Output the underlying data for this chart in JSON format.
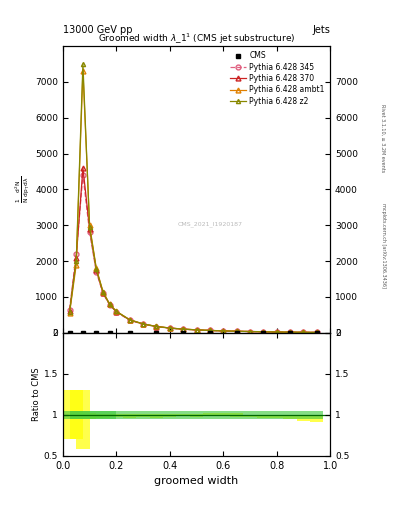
{
  "top_left_label": "13000 GeV pp",
  "top_right_label": "Jets",
  "right_label_top": "Rivet 3.1.10, ≥ 3.2M events",
  "right_label_bot": "mcplots.cern.ch [arXiv:1306.3436]",
  "watermark": "CMS_2021_I1920187",
  "xlabel": "groomed width",
  "ylabel_ratio": "Ratio to CMS",
  "xlim": [
    0.0,
    1.0
  ],
  "ylim_main": [
    0,
    8000
  ],
  "ylim_ratio": [
    0.5,
    2.0
  ],
  "yticks_main": [
    0,
    1000,
    2000,
    3000,
    4000,
    5000,
    6000,
    7000
  ],
  "x_data": [
    0.025,
    0.05,
    0.075,
    0.1,
    0.125,
    0.15,
    0.175,
    0.2,
    0.25,
    0.3,
    0.35,
    0.4,
    0.45,
    0.5,
    0.55,
    0.6,
    0.65,
    0.7,
    0.75,
    0.8,
    0.85,
    0.9,
    0.95
  ],
  "cms_y": [
    0,
    0,
    0,
    0,
    0,
    0,
    0,
    0,
    0,
    0,
    0,
    0,
    0,
    0,
    0,
    0,
    0,
    0,
    0,
    0,
    0,
    0,
    0
  ],
  "cms_yerr": [
    0,
    0,
    0,
    0,
    0,
    0,
    0,
    0,
    0,
    0,
    0,
    0,
    0,
    0,
    0,
    0,
    0,
    0,
    0,
    0,
    0,
    0,
    0
  ],
  "py345_y": [
    650,
    2200,
    4400,
    2800,
    1700,
    1100,
    780,
    580,
    350,
    240,
    170,
    130,
    100,
    80,
    65,
    52,
    42,
    35,
    28,
    22,
    17,
    13,
    10
  ],
  "py370_y": [
    600,
    2100,
    4600,
    2900,
    1750,
    1120,
    790,
    590,
    360,
    245,
    175,
    132,
    102,
    82,
    66,
    53,
    43,
    36,
    29,
    23,
    18,
    14,
    11
  ],
  "pyambt1_y": [
    550,
    1900,
    7300,
    3000,
    1800,
    1150,
    800,
    600,
    365,
    248,
    177,
    134,
    103,
    83,
    67,
    54,
    44,
    36,
    29,
    23,
    18,
    14,
    11
  ],
  "pyz2_y": [
    580,
    2000,
    7500,
    2950,
    1780,
    1140,
    795,
    598,
    363,
    247,
    176,
    133,
    102,
    82,
    66,
    53,
    43,
    36,
    29,
    23,
    18,
    14,
    11
  ],
  "cms_color": "#000000",
  "py345_color": "#e06080",
  "py370_color": "#cc2222",
  "pyambt1_color": "#e08000",
  "pyz2_color": "#888800",
  "legend_labels": [
    "CMS",
    "Pythia 6.428 345",
    "Pythia 6.428 370",
    "Pythia 6.428 ambt1",
    "Pythia 6.428 z2"
  ],
  "title_str": "Groomed width λ_1¹ (CMS jet substructure)"
}
